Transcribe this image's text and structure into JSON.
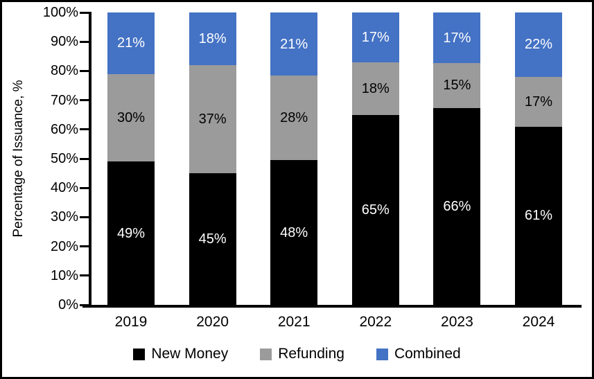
{
  "chart_data": {
    "type": "bar",
    "stacked": true,
    "title": "",
    "xlabel": "",
    "ylabel": "Percentage of Issuance, %",
    "categories": [
      "2019",
      "2020",
      "2021",
      "2022",
      "2023",
      "2024"
    ],
    "series": [
      {
        "name": "New Money",
        "color": "#000000",
        "label_color": "#ffffff",
        "values": [
          49,
          45,
          48,
          65,
          66,
          61
        ]
      },
      {
        "name": "Refunding",
        "color": "#9B9B9B",
        "label_color": "#000000",
        "values": [
          30,
          37,
          28,
          18,
          15,
          17
        ]
      },
      {
        "name": "Combined",
        "color": "#4472C4",
        "label_color": "#ffffff",
        "values": [
          21,
          18,
          21,
          17,
          17,
          22
        ]
      }
    ],
    "value_suffix": "%",
    "y_ticks": [
      "0%",
      "10%",
      "20%",
      "30%",
      "40%",
      "50%",
      "60%",
      "70%",
      "80%",
      "90%",
      "100%"
    ],
    "ylim": [
      0,
      100
    ],
    "grid": false,
    "legend_position": "bottom",
    "axis_color": "#000000",
    "background_color": "#ffffff"
  }
}
